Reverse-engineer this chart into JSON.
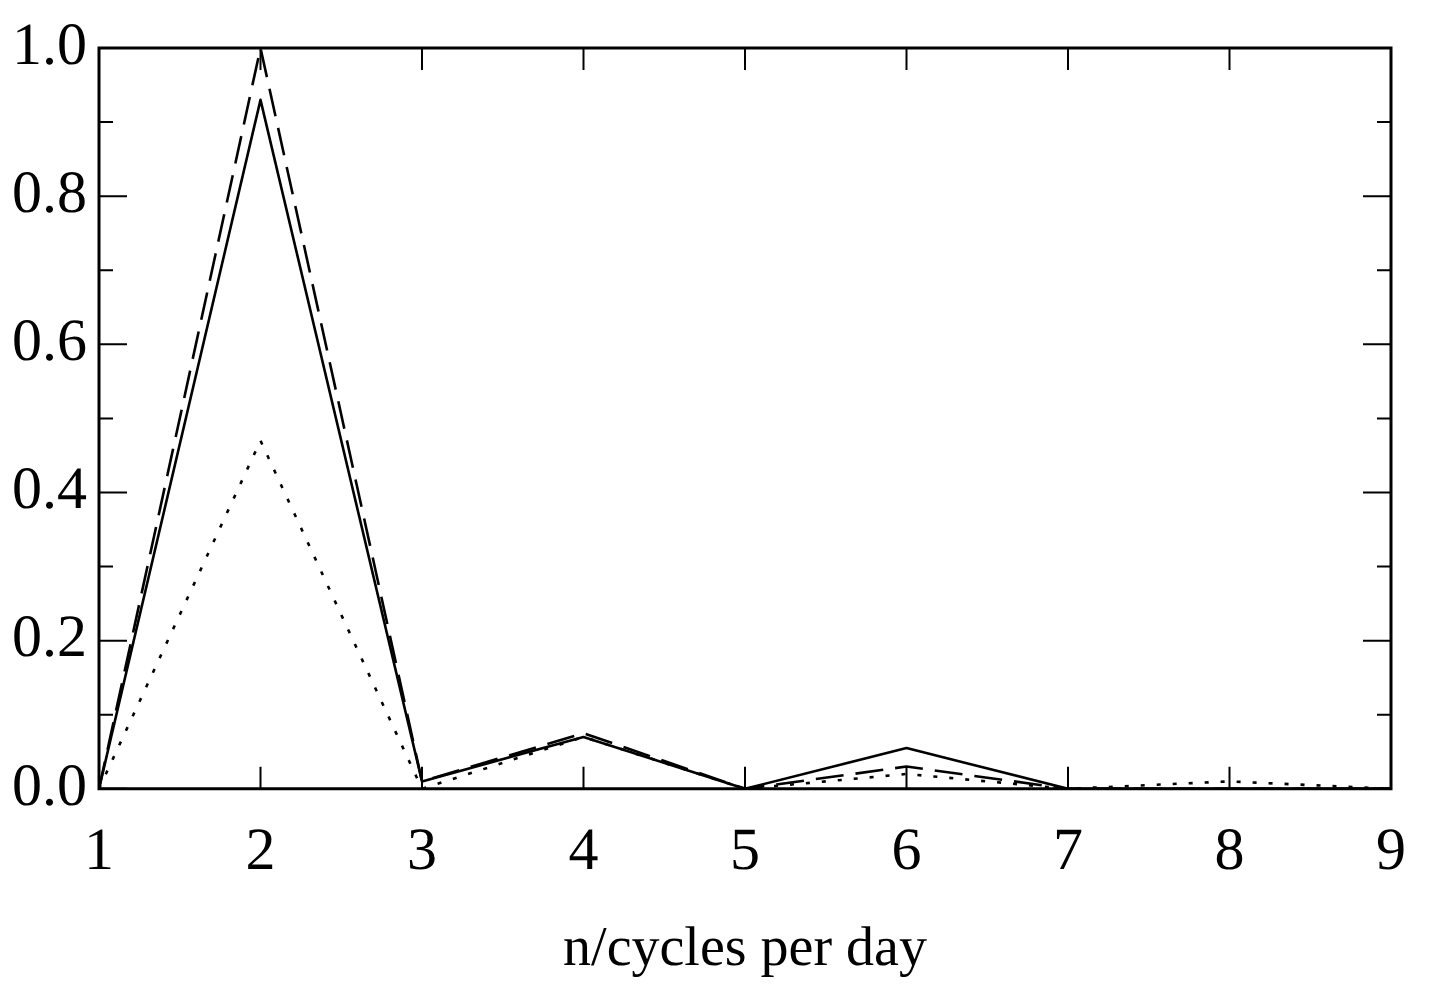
{
  "chart_data": {
    "type": "line",
    "xlabel": "n/cycles per day",
    "x": [
      1,
      2,
      3,
      4,
      5,
      6,
      7,
      8,
      9
    ],
    "series": [
      {
        "color": "#000000",
        "line_style": "solid",
        "values": [
          0,
          0.93,
          0.01,
          0.07,
          0,
          0.055,
          0,
          0,
          0
        ]
      },
      {
        "color": "#000000",
        "line_style": "dashed",
        "values": [
          0,
          1.0,
          0.01,
          0.075,
          0,
          0.03,
          0,
          0,
          0
        ]
      },
      {
        "color": "#000000",
        "line_style": "dotted",
        "values": [
          0,
          0.47,
          0,
          0.07,
          0,
          0.02,
          0,
          0.01,
          0
        ]
      }
    ],
    "xlim": [
      1,
      9
    ],
    "xticks": [
      1,
      2,
      3,
      4,
      5,
      6,
      7,
      8,
      9
    ],
    "ylim": [
      0,
      1
    ],
    "yticks": [
      {
        "value": 0,
        "label": "0.0"
      },
      {
        "value": 0.1,
        "label": null
      },
      {
        "value": 0.2,
        "label": "0.2"
      },
      {
        "value": 0.3,
        "label": null
      },
      {
        "value": 0.4,
        "label": "0.4"
      },
      {
        "value": 0.5,
        "label": null
      },
      {
        "value": 0.6,
        "label": "0.6"
      },
      {
        "value": 0.7,
        "label": null
      },
      {
        "value": 0.8,
        "label": "0.8"
      },
      {
        "value": 0.9,
        "label": null
      },
      {
        "value": 1,
        "label": "1.0"
      }
    ],
    "grid": false,
    "legend": false,
    "marker": "none"
  }
}
